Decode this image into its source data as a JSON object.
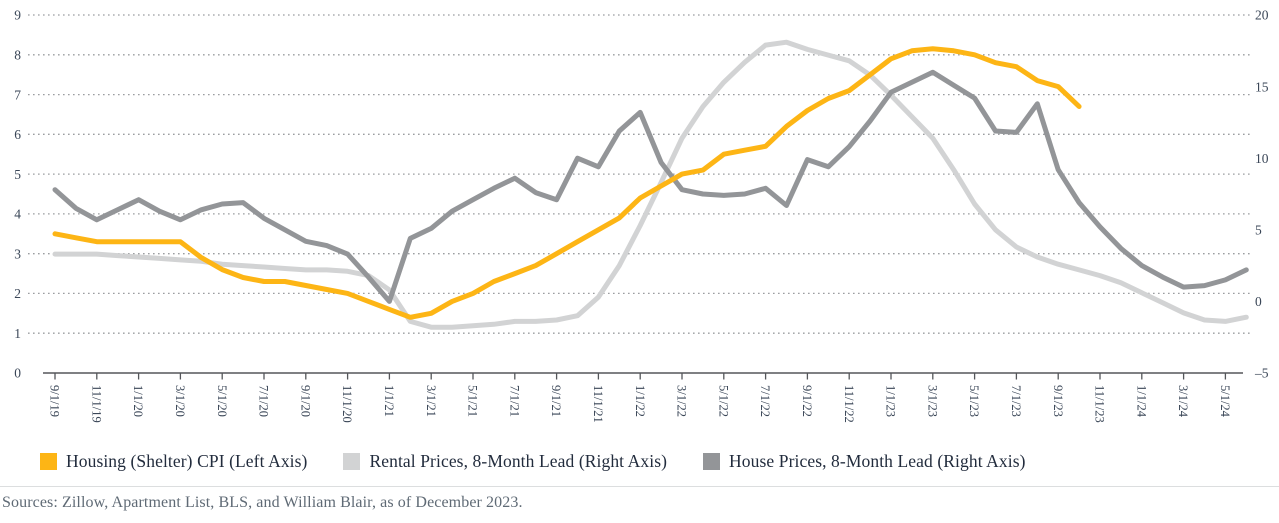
{
  "colors": {
    "background": "#ffffff",
    "gridline": "#9b9da0",
    "axis_line": "#55565a",
    "axis_text": "#3a4657",
    "legend_text": "#222c3d",
    "source_text": "#5f6a75",
    "cpi_orange": "#fdb515",
    "rental_light_gray": "#d2d3d4",
    "house_dark_gray": "#939598"
  },
  "chart_data": {
    "type": "line",
    "title": "",
    "xlabel": "",
    "ylabel_left": "",
    "ylabel_right": "",
    "grid": "dotted-horizontal",
    "legend_position": "bottom-left",
    "n_points": 58,
    "x_start": "9/1/19",
    "x_frequency": "monthly",
    "x_tick_every": 2,
    "x_tick_labels": [
      "9/1/19",
      "11/1/19",
      "1/1/20",
      "3/1/20",
      "5/1/20",
      "7/1/20",
      "9/1/20",
      "11/1/20",
      "1/1/21",
      "3/1/21",
      "5/1/21",
      "7/1/21",
      "9/1/21",
      "11/1/21",
      "1/1/22",
      "3/1/22",
      "5/1/22",
      "7/1/22",
      "9/1/22",
      "11/1/22",
      "1/1/23",
      "3/1/23",
      "5/1/23",
      "7/1/23",
      "9/1/23",
      "11/1/23",
      "1/1/24",
      "3/1/24",
      "5/1/24"
    ],
    "left_axis": {
      "min": 0,
      "max": 9,
      "ticks": [
        0,
        1,
        2,
        3,
        4,
        5,
        6,
        7,
        8,
        9
      ]
    },
    "right_axis": {
      "min": -5,
      "max": 20,
      "ticks": [
        -5,
        0,
        5,
        10,
        15,
        20
      ]
    },
    "series": [
      {
        "name": "Housing (Shelter) CPI (Left Axis)",
        "axis": "left",
        "color": "#fdb515",
        "values": [
          3.5,
          3.4,
          3.3,
          3.3,
          3.3,
          3.3,
          3.3,
          2.9,
          2.6,
          2.4,
          2.3,
          2.3,
          2.2,
          2.1,
          2.0,
          1.8,
          1.6,
          1.4,
          1.5,
          1.8,
          2.0,
          2.3,
          2.5,
          2.7,
          3.0,
          3.3,
          3.6,
          3.9,
          4.4,
          4.7,
          5.0,
          5.1,
          5.5,
          5.6,
          5.7,
          6.2,
          6.6,
          6.9,
          7.1,
          7.5,
          7.9,
          8.1,
          8.15,
          8.1,
          8.0,
          7.8,
          7.7,
          7.35,
          7.2,
          6.7,
          null,
          null,
          null,
          null,
          null,
          null,
          null,
          null
        ]
      },
      {
        "name": "Rental Prices, 8-Month Lead (Right Axis)",
        "axis": "right",
        "color": "#d2d3d4",
        "values": [
          3.3,
          3.3,
          3.3,
          3.2,
          3.1,
          3.0,
          2.9,
          2.8,
          2.6,
          2.5,
          2.4,
          2.3,
          2.2,
          2.2,
          2.1,
          1.8,
          0.8,
          -1.4,
          -1.8,
          -1.8,
          -1.7,
          -1.6,
          -1.4,
          -1.4,
          -1.3,
          -1.0,
          0.3,
          2.5,
          5.3,
          8.3,
          11.4,
          13.6,
          15.3,
          16.7,
          17.9,
          18.1,
          17.6,
          17.2,
          16.8,
          15.8,
          14.4,
          12.9,
          11.4,
          9.2,
          6.8,
          5.0,
          3.8,
          3.1,
          2.6,
          2.2,
          1.8,
          1.3,
          0.6,
          -0.1,
          -0.8,
          -1.3,
          -1.4,
          -1.1
        ]
      },
      {
        "name": "House Prices, 8-Month Lead (Right Axis)",
        "axis": "right",
        "color": "#939598",
        "values": [
          7.8,
          6.5,
          5.7,
          6.4,
          7.1,
          6.3,
          5.7,
          6.4,
          6.8,
          6.9,
          5.8,
          5.0,
          4.2,
          3.9,
          3.3,
          1.7,
          0.0,
          4.4,
          5.1,
          6.3,
          7.1,
          7.9,
          8.6,
          7.6,
          7.1,
          10.0,
          9.4,
          11.9,
          13.2,
          9.7,
          7.8,
          7.5,
          7.4,
          7.5,
          7.9,
          6.7,
          9.9,
          9.4,
          10.8,
          12.6,
          14.6,
          15.3,
          16.0,
          15.1,
          14.2,
          11.9,
          11.8,
          13.8,
          9.2,
          6.9,
          5.2,
          3.7,
          2.5,
          1.7,
          1.0,
          1.1,
          1.5,
          2.2
        ]
      }
    ]
  },
  "legend": {
    "items": [
      {
        "label": "Housing (Shelter) CPI (Left Axis)",
        "color": "#fdb515"
      },
      {
        "label": "Rental Prices, 8-Month Lead (Right Axis)",
        "color": "#d2d3d4"
      },
      {
        "label": "House Prices, 8-Month Lead (Right Axis)",
        "color": "#939598"
      }
    ]
  },
  "footer": {
    "source_text": "Sources: Zillow, Apartment List, BLS, and William Blair, as of December 2023."
  }
}
